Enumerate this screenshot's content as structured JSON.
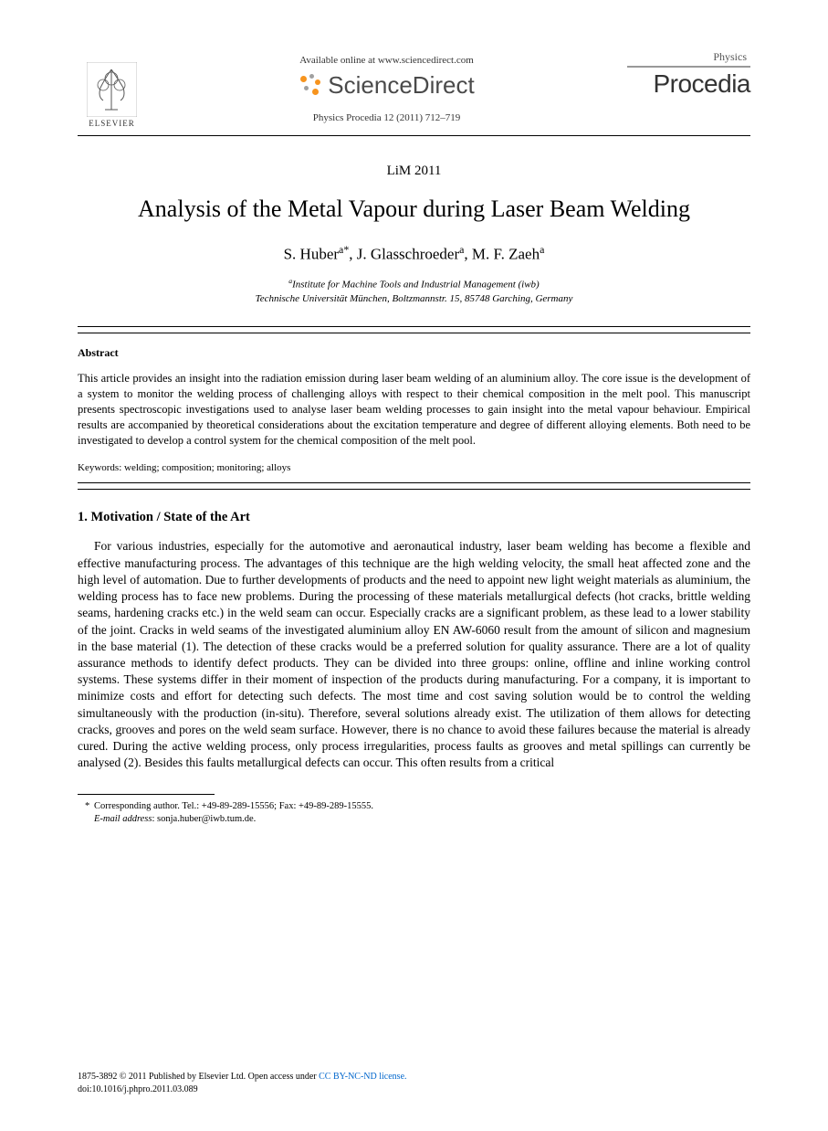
{
  "header": {
    "publisher": "ELSEVIER",
    "available_text": "Available online at www.sciencedirect.com",
    "platform": "ScienceDirect",
    "citation": "Physics Procedia 12 (2011) 712–719",
    "journal_category": "Physics",
    "journal_name": "Procedia",
    "sd_dot_colors": [
      "#f7941e",
      "#a0a0a0",
      "#f7941e",
      "#a0a0a0",
      "#f7941e"
    ]
  },
  "conference": "LiM 2011",
  "title": "Analysis of the Metal Vapour during Laser Beam Welding",
  "authors_html": "S. Huber<sup>a*</sup>, J. Glasschroeder<sup>a</sup>, M. F. Zaeh<sup>a</sup>",
  "affiliation_line1": "<sup>a</sup>Institute for Machine Tools and Industrial Management (iwb)",
  "affiliation_line2": "Technische Universität München, Boltzmannstr. 15, 85748 Garching, Germany",
  "abstract": {
    "heading": "Abstract",
    "text": "This article provides an insight into the radiation emission during laser beam welding of an aluminium alloy. The core issue is the development of a system to monitor the welding process of challenging alloys with respect to their chemical composition in the melt pool. This manuscript presents spectroscopic investigations used to analyse laser beam welding processes to gain insight into the metal vapour behaviour. Empirical results are accompanied by theoretical considerations about the excitation temperature and degree of different alloying elements. Both need to be investigated to develop a control system for the chemical composition of the melt pool."
  },
  "keywords": "Keywords: welding; composition; monitoring; alloys",
  "section1": {
    "heading": "1. Motivation / State of the Art",
    "body": "For various industries, especially for the automotive and aeronautical industry, laser beam welding has become a flexible and effective manufacturing process. The advantages of this technique are the high welding velocity, the small heat affected zone and the high level of automation. Due to further developments of products and the need to appoint new light weight materials as aluminium, the welding process has to face new problems. During the processing of these materials metallurgical defects (hot cracks, brittle welding seams, hardening cracks etc.) in the weld seam can occur. Especially cracks are a significant problem, as these lead to a lower stability of the joint. Cracks in weld seams of the investigated aluminium alloy EN AW-6060 result from the amount of silicon and magnesium in the base material (1). The detection of these cracks would be a preferred solution for quality assurance. There are a lot of quality assurance methods to identify defect products. They can be divided into three groups: online, offline and inline working control systems. These systems differ in their moment of inspection of the products during manufacturing. For a company, it is important to minimize costs and effort for detecting such defects. The most time and cost saving solution would be to control the welding simultaneously with the production (in-situ). Therefore, several solutions already exist. The utilization of them allows for detecting cracks, grooves and pores on the weld seam surface. However, there is no chance to avoid these failures because the material is already cured. During the active welding process, only process irregularities, process faults as grooves and metal spillings can currently be analysed (2). Besides this faults metallurgical defects can occur. This often results from a critical"
  },
  "footnote": {
    "corr": "Corresponding author. Tel.: +49-89-289-15556; Fax: +49-89-289-15555.",
    "email_label": "E-mail address",
    "email": "sonja.huber@iwb.tum.de."
  },
  "footer": {
    "issn": "1875-3892 © 2011 Published by Elsevier Ltd.",
    "license_prefix": "Open access under ",
    "license_link": "CC BY-NC-ND license.",
    "doi": "doi:10.1016/j.phpro.2011.03.089"
  },
  "colors": {
    "text": "#000000",
    "link": "#0066cc",
    "bg": "#ffffff",
    "grey": "#4a4a4a"
  }
}
